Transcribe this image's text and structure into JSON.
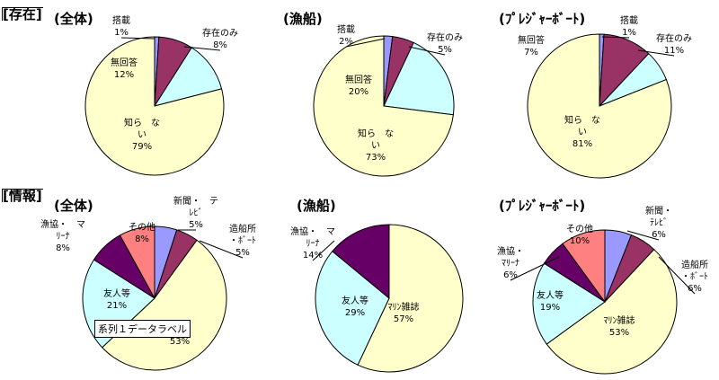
{
  "sections": {
    "existence": "[存在]",
    "information": "[情報]"
  },
  "tooltip": "系列１データラベル",
  "colors": {
    "purple": "#993366",
    "dark_purple": "#660066",
    "lavender": "#9999ff",
    "cream": "#ffffcc",
    "light_cyan": "#ccffff",
    "salmon": "#ff8080"
  },
  "chart_data": [
    {
      "type": "pie",
      "title": "(全体)",
      "categories": [
        "搭載",
        "存在のみ",
        "無回答",
        "知らない"
      ],
      "values": [
        1,
        8,
        12,
        79
      ],
      "labels": [
        "搭載\n1%",
        "存在のみ\n8%",
        "無回答\n12%",
        "知ら　な\nい\n79%"
      ]
    },
    {
      "type": "pie",
      "title": "(漁船)",
      "categories": [
        "搭載",
        "存在のみ",
        "無回答",
        "知らない"
      ],
      "values": [
        2,
        5,
        20,
        73
      ],
      "labels": [
        "搭載\n2%",
        "存在のみ\n5%",
        "無回答\n20%",
        "知ら　な\nい\n73%"
      ]
    },
    {
      "type": "pie",
      "title": "(ﾌﾟﾚｼﾞｬｰﾎﾞｰﾄ)",
      "categories": [
        "搭載",
        "存在のみ",
        "無回答",
        "知らない"
      ],
      "values": [
        1,
        11,
        7,
        81
      ],
      "labels": [
        "搭載\n1%",
        "存在のみ\n11%",
        "無回答\n7%",
        "知ら　な\nい\n81%"
      ]
    },
    {
      "type": "pie",
      "title": "(全体)",
      "categories": [
        "新聞・テレビ",
        "造船所・ボート",
        "マリン雑誌",
        "友人等",
        "漁協・マリーナ",
        "その他"
      ],
      "values": [
        5,
        5,
        53,
        21,
        8,
        8
      ],
      "labels": [
        "新聞・　テ\nﾚﾋﾞ\n5%",
        "造船所\n・ﾎﾞｰﾄ\n5%",
        "雑誌\n53%",
        "友人等\n21%",
        "漁協・　マ\nﾘｰﾅ\n8%",
        "その他\n8%"
      ]
    },
    {
      "type": "pie",
      "title": "(漁船)",
      "categories": [
        "マリン雑誌",
        "友人等",
        "漁協・マリーナ"
      ],
      "values": [
        57,
        29,
        14
      ],
      "labels": [
        "ﾏﾘﾝ雑誌\n57%",
        "友人等\n29%",
        "漁協・　マ\nﾘｰﾅ\n14%"
      ]
    },
    {
      "type": "pie",
      "title": "(ﾌﾟﾚｼﾞｬｰﾎﾞｰﾄ)",
      "categories": [
        "新聞・テレビ",
        "造船所・ボート",
        "マリン雑誌",
        "友人等",
        "漁協・マリーナ",
        "その他"
      ],
      "values": [
        6,
        6,
        53,
        19,
        6,
        10
      ],
      "labels": [
        "新聞・\nﾃﾚﾋﾞ\n6%",
        "造船所\n・ﾎﾞｰﾄ\n6%",
        "ﾏﾘﾝ雑誌\n53%",
        "友人等\n19%",
        "漁協・\nﾏﾘｰﾅ\n6%",
        "その他\n10%"
      ]
    }
  ]
}
